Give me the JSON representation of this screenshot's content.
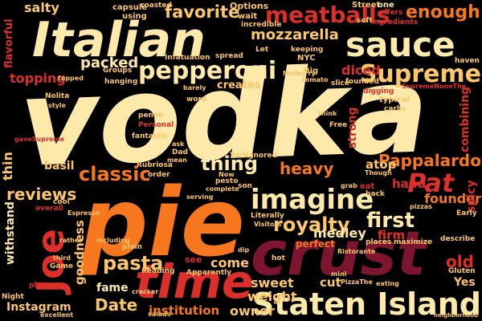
{
  "palette": {
    "cream": "#fde9a9",
    "yellow": "#fcc66a",
    "orange": "#f7771f",
    "red": "#dc2f2a",
    "crimson": "#a01c27",
    "maroon": "#7d1530",
    "background": "#000000"
  },
  "words": [
    {
      "text": "vodka",
      "color": "cream"
    },
    {
      "text": "pie",
      "color": "orange"
    },
    {
      "text": "crust",
      "color": "maroon"
    },
    {
      "text": "Italian",
      "color": "cream"
    },
    {
      "text": "time",
      "color": "red"
    },
    {
      "text": "sauce",
      "color": "cream"
    },
    {
      "text": "Staten Island",
      "color": "cream"
    },
    {
      "text": "Joe",
      "color": "red"
    },
    {
      "text": "meatballs",
      "color": "red"
    },
    {
      "text": "pepperoni",
      "color": "cream"
    },
    {
      "text": "Supreme",
      "color": "yellow"
    },
    {
      "text": "imagine",
      "color": "cream"
    },
    {
      "text": "enough",
      "color": "orange"
    },
    {
      "text": "classic",
      "color": "orange"
    },
    {
      "text": "Pat",
      "color": "red"
    },
    {
      "text": "Pappalardo",
      "color": "orange"
    },
    {
      "text": "first",
      "color": "cream"
    },
    {
      "text": "royalty",
      "color": "yellow"
    },
    {
      "text": "pasta",
      "color": "yellow"
    },
    {
      "text": "reviews",
      "color": "yellow"
    },
    {
      "text": "favorite",
      "color": "yellow"
    },
    {
      "text": "mozzarella",
      "color": "yellow"
    },
    {
      "text": "packed",
      "color": "cream"
    },
    {
      "text": "topping",
      "color": "red"
    },
    {
      "text": "salty",
      "color": "yellow"
    },
    {
      "text": "thing",
      "color": "cream"
    },
    {
      "text": "heavy",
      "color": "orange"
    },
    {
      "text": "old",
      "color": "red"
    },
    {
      "text": "sweet",
      "color": "yellow"
    },
    {
      "text": "weight",
      "color": "yellow"
    },
    {
      "text": "Date",
      "color": "yellow"
    },
    {
      "text": "fame",
      "color": "cream"
    },
    {
      "text": "owner",
      "color": "yellow"
    },
    {
      "text": "institution",
      "color": "orange"
    },
    {
      "text": "Instagram",
      "color": "yellow"
    },
    {
      "text": "withstand",
      "color": "cream"
    },
    {
      "text": "goodness",
      "color": "yellow"
    },
    {
      "text": "come",
      "color": "yellow"
    },
    {
      "text": "medley",
      "color": "cream"
    },
    {
      "text": "founder",
      "color": "orange"
    },
    {
      "text": "firm",
      "color": "red"
    },
    {
      "text": "hand",
      "color": "red"
    },
    {
      "text": "combining",
      "color": "red"
    },
    {
      "text": "diced",
      "color": "red"
    },
    {
      "text": "creates",
      "color": "yellow"
    },
    {
      "text": "basil",
      "color": "yellow"
    },
    {
      "text": "atop",
      "color": "yellow"
    },
    {
      "text": "cut",
      "color": "yellow"
    },
    {
      "text": "Yes",
      "color": "yellow"
    },
    {
      "text": "spicy",
      "color": "red"
    },
    {
      "text": "strong",
      "color": "red"
    },
    {
      "text": "thin",
      "color": "yellow"
    },
    {
      "text": "flavorful",
      "color": "red"
    },
    {
      "text": "capsule",
      "color": "yellow"
    },
    {
      "text": "using",
      "color": "yellow"
    },
    {
      "text": "roasted",
      "color": "yellow"
    },
    {
      "text": "Options",
      "color": "yellow"
    },
    {
      "text": "wait",
      "color": "yellow"
    },
    {
      "text": "incredible",
      "color": "yellow"
    },
    {
      "text": "Street",
      "color": "yellow"
    },
    {
      "text": "one",
      "color": "cream"
    },
    {
      "text": "offers",
      "color": "red"
    },
    {
      "text": "soft",
      "color": "yellow"
    },
    {
      "text": "ingredients",
      "color": "red"
    },
    {
      "text": "haven",
      "color": "yellow"
    },
    {
      "text": "Infatuation",
      "color": "yellow"
    },
    {
      "text": "spread",
      "color": "yellow"
    },
    {
      "text": "Let",
      "color": "yellow"
    },
    {
      "text": "keeping",
      "color": "yellow"
    },
    {
      "text": "NYC",
      "color": "yellow"
    },
    {
      "text": "Big",
      "color": "yellow"
    },
    {
      "text": "tomato",
      "color": "yellow"
    },
    {
      "text": "founded",
      "color": "yellow"
    },
    {
      "text": "slice",
      "color": "yellow"
    },
    {
      "text": "digging",
      "color": "red"
    },
    {
      "text": "typical",
      "color": "yellow"
    },
    {
      "text": "carbs",
      "color": "yellow"
    },
    {
      "text": "SupremeNoneThe",
      "color": "red"
    },
    {
      "text": "Groups",
      "color": "yellow"
    },
    {
      "text": "hanging",
      "color": "yellow"
    },
    {
      "text": "barely",
      "color": "yellow"
    },
    {
      "text": "word",
      "color": "yellow"
    },
    {
      "text": "topped",
      "color": "yellow"
    },
    {
      "text": "Nolita",
      "color": "yellow"
    },
    {
      "text": "style",
      "color": "yellow"
    },
    {
      "text": "penne",
      "color": "yellow"
    },
    {
      "text": "Personal",
      "color": "red"
    },
    {
      "text": "fantastic",
      "color": "yellow"
    },
    {
      "text": "Free",
      "color": "yellow"
    },
    {
      "text": "Rubriosa",
      "color": "yellow"
    },
    {
      "text": "order",
      "color": "yellow"
    },
    {
      "text": "pesto",
      "color": "yellow"
    },
    {
      "text": "complete",
      "color": "yellow"
    },
    {
      "text": "son",
      "color": "yellow"
    },
    {
      "text": "York",
      "color": "yellow"
    },
    {
      "text": "ignored",
      "color": "yellow"
    },
    {
      "text": "eat",
      "color": "red"
    },
    {
      "text": "Dad",
      "color": "yellow"
    },
    {
      "text": "Literally",
      "color": "yellow"
    },
    {
      "text": "Visitors",
      "color": "yellow"
    },
    {
      "text": "perfect",
      "color": "orange"
    },
    {
      "text": "back",
      "color": "yellow"
    },
    {
      "text": "pizzas",
      "color": "yellow"
    },
    {
      "text": "Early",
      "color": "yellow"
    },
    {
      "text": "places",
      "color": "yellow"
    },
    {
      "text": "maximize",
      "color": "yellow"
    },
    {
      "text": "Ristorante",
      "color": "yellow"
    },
    {
      "text": "describe",
      "color": "yellow"
    },
    {
      "text": "plain",
      "color": "yellow"
    },
    {
      "text": "see",
      "color": "red"
    },
    {
      "text": "Reading",
      "color": "yellow"
    },
    {
      "text": "Apparently",
      "color": "yellow"
    },
    {
      "text": "cracker",
      "color": "yellow"
    },
    {
      "text": "hot",
      "color": "yellow"
    },
    {
      "text": "mini",
      "color": "yellow"
    },
    {
      "text": "PizzaThe",
      "color": "yellow"
    },
    {
      "text": "eating",
      "color": "yellow"
    },
    {
      "text": "Gluten",
      "color": "yellow"
    },
    {
      "text": "salads",
      "color": "yellow"
    },
    {
      "text": "excellent",
      "color": "yellow"
    },
    {
      "text": "Night",
      "color": "yellow"
    },
    {
      "text": "plate",
      "color": "red"
    },
    {
      "text": "Game",
      "color": "yellow"
    },
    {
      "text": "third",
      "color": "yellow"
    },
    {
      "text": "rather",
      "color": "yellow"
    },
    {
      "text": "cool",
      "color": "yellow"
    },
    {
      "text": "overall",
      "color": "red"
    },
    {
      "text": "Espresso",
      "color": "yellow"
    },
    {
      "text": "dip",
      "color": "yellow"
    },
    {
      "text": "ask",
      "color": "yellow"
    },
    {
      "text": "neighborhood",
      "color": "yellow"
    },
    {
      "text": "Mulberry",
      "color": "yellow"
    },
    {
      "text": "think",
      "color": "yellow"
    },
    {
      "text": "gaveSupreme",
      "color": "red"
    },
    {
      "text": "grab",
      "color": "yellow"
    },
    {
      "text": "Now",
      "color": "yellow"
    },
    {
      "text": "Though",
      "color": "yellow"
    },
    {
      "text": "serving",
      "color": "yellow"
    },
    {
      "text": "including",
      "color": "yellow"
    },
    {
      "text": "mean",
      "color": "yellow"
    }
  ]
}
